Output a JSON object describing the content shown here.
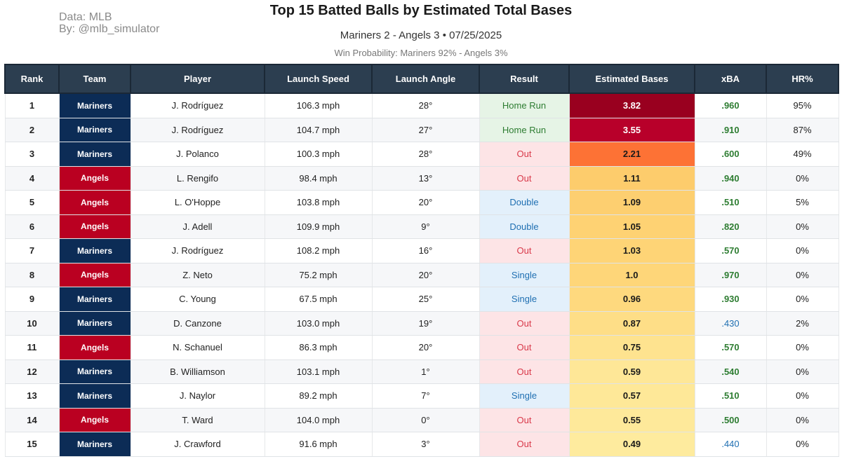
{
  "credits": {
    "line1": "Data: MLB",
    "line2": "By: @mlb_simulator"
  },
  "title": "Top 15 Batted Balls by Estimated Total Bases",
  "subtitle": "Mariners 2 - Angels 3  •  07/25/2025",
  "win_probability": "Win Probability: Mariners 92% - Angels 3%",
  "colors": {
    "header": "#2c3e50",
    "mariners": "#0c2c56",
    "angels": "#ba0021"
  },
  "chart_data": {
    "type": "table",
    "title": "Top 15 Batted Balls by Estimated Total Bases",
    "columns": [
      "Rank",
      "Team",
      "Player",
      "Launch Speed",
      "Launch Angle",
      "Result",
      "Estimated Bases",
      "xBA",
      "HR%"
    ],
    "rows": [
      {
        "rank": "1",
        "team": "Mariners",
        "player": "J. Rodríguez",
        "speed": "106.3 mph",
        "angle": "28°",
        "result": "Home Run",
        "eb": "3.82",
        "eb_color": "#99001f",
        "eb_text": "#ffffff",
        "xba": ".960",
        "hr": "95%"
      },
      {
        "rank": "2",
        "team": "Mariners",
        "player": "J. Rodríguez",
        "speed": "104.7 mph",
        "angle": "27°",
        "result": "Home Run",
        "eb": "3.55",
        "eb_color": "#b8002a",
        "eb_text": "#ffffff",
        "xba": ".910",
        "hr": "87%"
      },
      {
        "rank": "3",
        "team": "Mariners",
        "player": "J. Polanco",
        "speed": "100.3 mph",
        "angle": "28°",
        "result": "Out",
        "eb": "2.21",
        "eb_color": "#fd7235",
        "eb_text": "#1a1a1a",
        "xba": ".600",
        "hr": "49%"
      },
      {
        "rank": "4",
        "team": "Angels",
        "player": "L. Rengifo",
        "speed": "98.4 mph",
        "angle": "13°",
        "result": "Out",
        "eb": "1.11",
        "eb_color": "#fdcc6c",
        "eb_text": "#1a1a1a",
        "xba": ".940",
        "hr": "0%"
      },
      {
        "rank": "5",
        "team": "Angels",
        "player": "L. O'Hoppe",
        "speed": "103.8 mph",
        "angle": "20°",
        "result": "Double",
        "eb": "1.09",
        "eb_color": "#fdcf70",
        "eb_text": "#1a1a1a",
        "xba": ".510",
        "hr": "5%"
      },
      {
        "rank": "6",
        "team": "Angels",
        "player": "J. Adell",
        "speed": "109.9 mph",
        "angle": "9°",
        "result": "Double",
        "eb": "1.05",
        "eb_color": "#fed273",
        "eb_text": "#1a1a1a",
        "xba": ".820",
        "hr": "0%"
      },
      {
        "rank": "7",
        "team": "Mariners",
        "player": "J. Rodríguez",
        "speed": "108.2 mph",
        "angle": "16°",
        "result": "Out",
        "eb": "1.03",
        "eb_color": "#fed476",
        "eb_text": "#1a1a1a",
        "xba": ".570",
        "hr": "0%"
      },
      {
        "rank": "8",
        "team": "Angels",
        "player": "Z. Neto",
        "speed": "75.2 mph",
        "angle": "20°",
        "result": "Single",
        "eb": "1.0",
        "eb_color": "#fed679",
        "eb_text": "#1a1a1a",
        "xba": ".970",
        "hr": "0%"
      },
      {
        "rank": "9",
        "team": "Mariners",
        "player": "C. Young",
        "speed": "67.5 mph",
        "angle": "25°",
        "result": "Single",
        "eb": "0.96",
        "eb_color": "#fed97e",
        "eb_text": "#1a1a1a",
        "xba": ".930",
        "hr": "0%"
      },
      {
        "rank": "10",
        "team": "Mariners",
        "player": "D. Canzone",
        "speed": "103.0 mph",
        "angle": "19°",
        "result": "Out",
        "eb": "0.87",
        "eb_color": "#fede87",
        "eb_text": "#1a1a1a",
        "xba": ".430",
        "hr": "2%"
      },
      {
        "rank": "11",
        "team": "Angels",
        "player": "N. Schanuel",
        "speed": "86.3 mph",
        "angle": "20°",
        "result": "Out",
        "eb": "0.75",
        "eb_color": "#fee38f",
        "eb_text": "#1a1a1a",
        "xba": ".570",
        "hr": "0%"
      },
      {
        "rank": "12",
        "team": "Mariners",
        "player": "B. Williamson",
        "speed": "103.1 mph",
        "angle": "1°",
        "result": "Out",
        "eb": "0.59",
        "eb_color": "#fee797",
        "eb_text": "#1a1a1a",
        "xba": ".540",
        "hr": "0%"
      },
      {
        "rank": "13",
        "team": "Mariners",
        "player": "J. Naylor",
        "speed": "89.2 mph",
        "angle": "7°",
        "result": "Single",
        "eb": "0.57",
        "eb_color": "#fee898",
        "eb_text": "#1a1a1a",
        "xba": ".510",
        "hr": "0%"
      },
      {
        "rank": "14",
        "team": "Angels",
        "player": "T. Ward",
        "speed": "104.0 mph",
        "angle": "0°",
        "result": "Out",
        "eb": "0.55",
        "eb_color": "#fee99a",
        "eb_text": "#1a1a1a",
        "xba": ".500",
        "hr": "0%"
      },
      {
        "rank": "15",
        "team": "Mariners",
        "player": "J. Crawford",
        "speed": "91.6 mph",
        "angle": "3°",
        "result": "Out",
        "eb": "0.49",
        "eb_color": "#feeb9e",
        "eb_text": "#1a1a1a",
        "xba": ".440",
        "hr": "0%"
      }
    ]
  }
}
